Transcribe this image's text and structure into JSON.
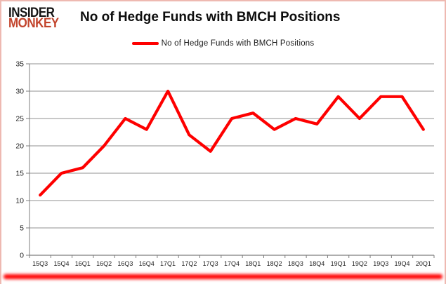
{
  "logo": {
    "line1": "INSIDER",
    "line2": "MONKEY"
  },
  "header": {
    "title": "No of Hedge Funds with BMCH Positions"
  },
  "legend": {
    "label": "No of Hedge Funds with BMCH Positions"
  },
  "colors": {
    "line": "#fe0000",
    "grid": "#909090",
    "axis": "#7d7d7d",
    "tick_text": "#1f1f1f",
    "title_text": "#0d0d0d",
    "logo_black": "#141414",
    "logo_red": "#c2442c",
    "frame_border": "#eeb9b1",
    "bottom_bar": "#ff0000"
  },
  "chart_data": {
    "type": "line",
    "title": "No of Hedge Funds with BMCH Positions",
    "xlabel": "",
    "ylabel": "",
    "categories": [
      "15Q3",
      "15Q4",
      "16Q1",
      "16Q2",
      "16Q3",
      "16Q4",
      "17Q1",
      "17Q2",
      "17Q3",
      "17Q4",
      "18Q1",
      "18Q2",
      "18Q3",
      "18Q4",
      "19Q1",
      "19Q2",
      "19Q3",
      "19Q4",
      "20Q1"
    ],
    "series": [
      {
        "name": "No of Hedge Funds with BMCH Positions",
        "color": "#fe0000",
        "values": [
          11,
          15,
          16,
          20,
          25,
          23,
          30,
          22,
          19,
          25,
          26,
          23,
          25,
          24,
          29,
          25,
          29,
          29,
          23
        ]
      }
    ],
    "ylim": [
      0,
      35
    ],
    "ytick_step": 5,
    "grid": true,
    "legend_position": "top-center"
  }
}
